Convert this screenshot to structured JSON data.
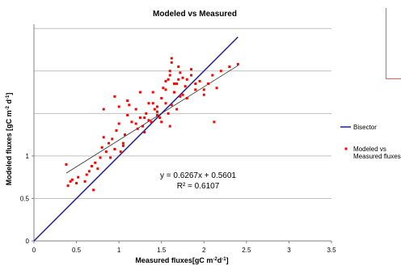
{
  "chart_data": {
    "type": "scatter",
    "title": "Modeled vs Measured",
    "xlabel": "Measured fluxes[gC m-2d-1]",
    "ylabel": "Modeled fluxes [gC m-2 d-1]",
    "xlim": [
      0,
      3.5
    ],
    "ylim": [
      0,
      2.55
    ],
    "x_ticks": [
      "0",
      "0.5",
      "1",
      "1.5",
      "2",
      "2.5",
      "3",
      "3.5"
    ],
    "y_ticks": [
      "0",
      "0.5",
      "1"
    ],
    "grid": "horizontal",
    "legend_position": "right",
    "series": [
      {
        "name": "Bisector",
        "kind": "line",
        "color": "#1f1f9a",
        "x": [
          0,
          2.4
        ],
        "y": [
          0,
          2.4
        ]
      },
      {
        "name": "Modeled vs Measured fluxes",
        "kind": "scatter",
        "color": "#ff0000",
        "x": [
          0.38,
          0.4,
          0.43,
          0.45,
          0.5,
          0.52,
          0.6,
          0.62,
          0.65,
          0.68,
          0.7,
          0.72,
          0.75,
          0.78,
          0.8,
          0.82,
          0.85,
          0.88,
          0.9,
          0.92,
          0.95,
          0.97,
          1.0,
          1.02,
          1.05,
          1.07,
          1.1,
          1.12,
          1.15,
          1.2,
          1.22,
          1.25,
          1.28,
          1.3,
          1.32,
          1.35,
          1.38,
          1.4,
          1.42,
          1.45,
          1.48,
          1.5,
          1.52,
          1.55,
          1.58,
          1.6,
          1.62,
          1.65,
          1.68,
          1.7,
          1.72,
          1.75,
          1.78,
          1.8,
          1.85,
          1.9,
          1.95,
          2.0,
          2.05,
          2.1,
          2.15,
          2.2,
          2.3,
          2.4,
          0.95,
          1.0,
          1.1,
          1.25,
          1.35,
          1.45,
          1.55,
          1.6,
          1.65,
          1.7,
          1.75,
          1.5,
          1.6,
          1.58,
          1.62,
          1.55,
          1.4,
          1.3,
          1.2,
          1.8,
          1.85,
          1.9,
          2.0,
          2.12,
          1.68,
          1.45,
          1.62,
          1.72,
          0.82,
          1.05
        ],
        "y": [
          0.9,
          0.65,
          0.7,
          0.72,
          0.68,
          0.75,
          0.7,
          0.78,
          0.82,
          0.88,
          0.6,
          0.92,
          0.85,
          0.98,
          1.1,
          1.55,
          1.05,
          1.15,
          0.98,
          1.2,
          1.08,
          1.3,
          1.38,
          1.05,
          1.12,
          1.25,
          1.48,
          1.6,
          1.4,
          1.55,
          1.32,
          1.45,
          1.35,
          1.28,
          1.5,
          1.62,
          1.4,
          1.75,
          1.55,
          1.58,
          1.45,
          1.68,
          1.8,
          1.62,
          1.9,
          2.0,
          2.1,
          1.75,
          1.85,
          2.05,
          1.7,
          1.92,
          1.82,
          1.68,
          1.95,
          1.78,
          1.88,
          1.72,
          1.85,
          1.95,
          1.8,
          2.0,
          2.05,
          2.08,
          1.7,
          1.58,
          1.65,
          1.75,
          1.42,
          1.52,
          1.78,
          1.95,
          1.85,
          1.9,
          1.72,
          1.4,
          1.35,
          1.5,
          1.6,
          1.88,
          1.62,
          1.45,
          1.38,
          1.9,
          2.02,
          1.85,
          1.78,
          1.4,
          1.55,
          1.48,
          2.15,
          1.98,
          1.22,
          1.15
        ]
      }
    ],
    "annotations": [
      "y = 0.6267x + 0.5601",
      "R² = 0.6107"
    ],
    "trendline": {
      "slope": 0.6267,
      "intercept": 0.5601,
      "color": "#303030"
    }
  },
  "legend": {
    "bisector_label": "Bisector",
    "scatter_label_line1": "Modeled vs",
    "scatter_label_line2": "Measured fluxes"
  }
}
